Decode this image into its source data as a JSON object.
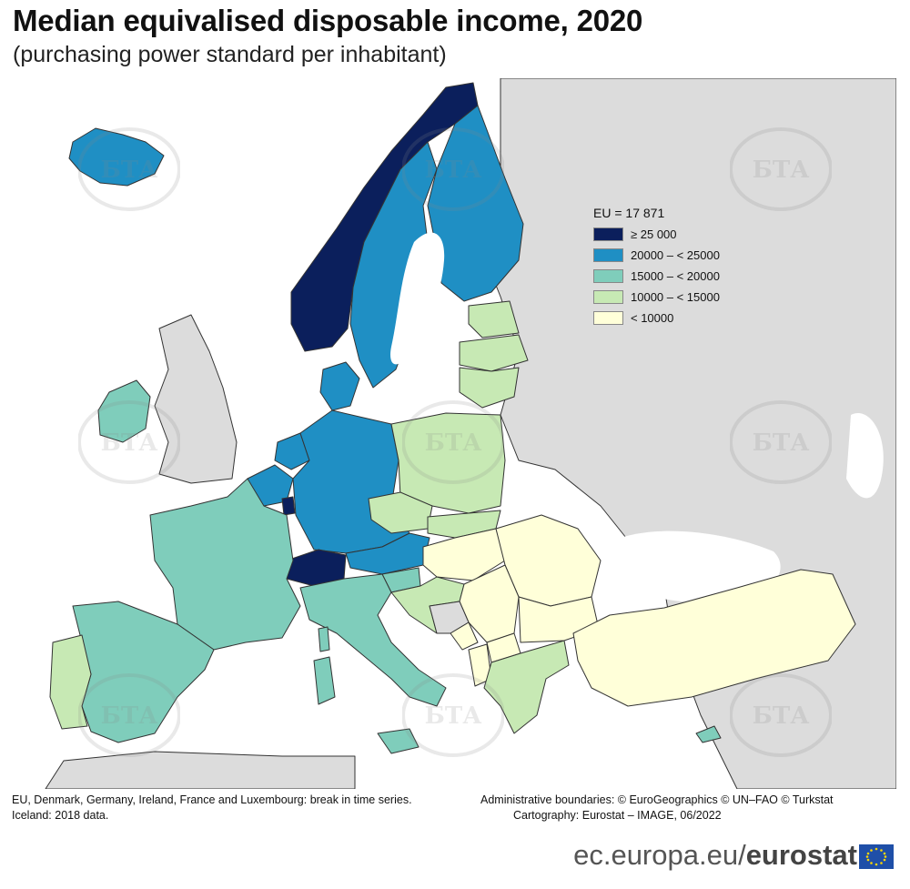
{
  "header": {
    "title": "Median equivalised disposable income, 2020",
    "subtitle": "(purchasing power standard per inhabitant)"
  },
  "legend": {
    "eu_value": "EU = 17 871",
    "items": [
      {
        "label": "≥ 25 000",
        "color": "#0b1f5c"
      },
      {
        "label": "20000 – < 25000",
        "color": "#1f8fc4"
      },
      {
        "label": "15000 – < 20000",
        "color": "#7fcdbb"
      },
      {
        "label": "10000 – < 15000",
        "color": "#c7e9b4"
      },
      {
        "label": "< 10000",
        "color": "#ffffd9"
      }
    ]
  },
  "map_colors": {
    "sea": "#ffffff",
    "no_data": "#dcdcdc",
    "border": "#333333"
  },
  "notes": {
    "left": "EU, Denmark, Germany, Ireland, France and Luxembourg: break in time series.",
    "left2": "Iceland: 2018 data.",
    "right1": "Administrative boundaries: © EuroGeographics © UN–FAO © Turkstat",
    "right2": "Cartography: Eurostat – IMAGE, 06/2022"
  },
  "brand": {
    "prefix": "ec.europa.eu/",
    "name": "eurostat"
  },
  "watermark": "БТА"
}
